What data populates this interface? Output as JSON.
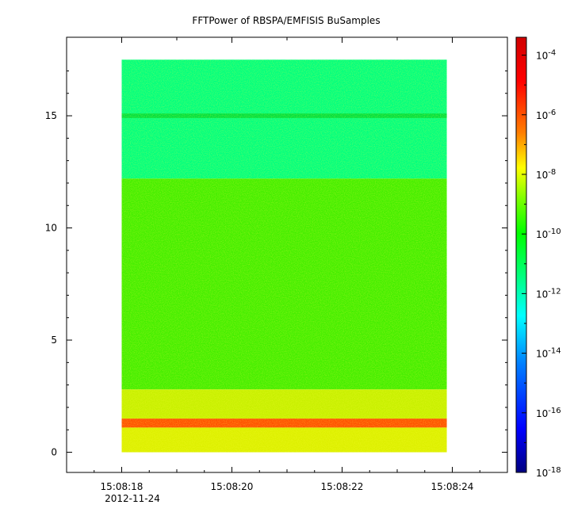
{
  "chart_data": {
    "type": "heatmap",
    "title": "FFTPower of RBSPA/EMFISIS  BuSamples",
    "xlabel": "",
    "ylabel": "",
    "x_ticks": [
      "15:08:18",
      "15:08:20",
      "15:08:22",
      "15:08:24"
    ],
    "x_tick_values": [
      18,
      20,
      22,
      24
    ],
    "x_subtitle": "2012-11-24",
    "xlim": [
      17.0,
      25.0
    ],
    "y_ticks": [
      "0",
      "5",
      "10",
      "15"
    ],
    "y_tick_values": [
      0,
      5,
      10,
      15
    ],
    "ylim": [
      -0.9,
      18.5
    ],
    "colorbar": {
      "scale": "log",
      "range_exponents": [
        -18,
        -3.4
      ],
      "tick_exponents": [
        -18,
        -16,
        -14,
        -12,
        -10,
        -8,
        -6,
        -4
      ],
      "tick_base": "10",
      "colors": [
        "#00007f",
        "#0000ff",
        "#007fff",
        "#00ffff",
        "#00ff7f",
        "#00ff00",
        "#7fff00",
        "#ffff00",
        "#ff7f00",
        "#ff0000",
        "#7f0000"
      ]
    },
    "data_x_range": [
      18.0,
      23.9
    ],
    "data_y_range": [
      0.0,
      17.5
    ],
    "bands": [
      {
        "y_range": [
          12.2,
          17.5
        ],
        "log_power": -12.5,
        "description_color": "#00ff7f"
      },
      {
        "y_range": [
          14.9,
          15.1
        ],
        "log_power": -11.5,
        "description_color": "#00e040"
      },
      {
        "y_range": [
          2.8,
          12.2
        ],
        "log_power": -10.5,
        "description_color": "#44ee00"
      },
      {
        "y_range": [
          1.5,
          2.8
        ],
        "log_power": -9.0,
        "description_color": "#c8f000"
      },
      {
        "y_range": [
          1.1,
          1.5
        ],
        "log_power": -6.3,
        "description_color": "#ff5000"
      },
      {
        "y_range": [
          0.0,
          1.1
        ],
        "log_power": -9.0,
        "description_color": "#ddf000"
      }
    ]
  }
}
